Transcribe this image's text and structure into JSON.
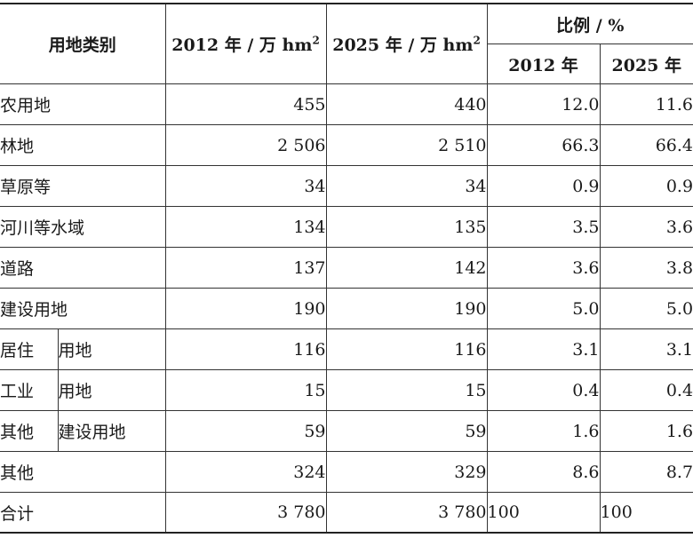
{
  "header": {
    "category": "用地类别",
    "col_2012": "2012 年 / 万 hm",
    "col_2025": "2025 年 / 万 hm",
    "unit_exp": "2",
    "ratio": "比例 / %",
    "ratio_2012": "2012 年",
    "ratio_2025": "2025 年"
  },
  "rows": [
    {
      "name": "农用地",
      "v2012": "455",
      "v2025": "440",
      "p2012": "12.0",
      "p2025": "11.6"
    },
    {
      "name": "林地",
      "v2012": "2 506",
      "v2025": "2 510",
      "p2012": "66.3",
      "p2025": "66.4"
    },
    {
      "name": "草原等",
      "v2012": "34",
      "v2025": "34",
      "p2012": "0.9",
      "p2025": "0.9"
    },
    {
      "name": "河川等水域",
      "v2012": "134",
      "v2025": "135",
      "p2012": "3.5",
      "p2025": "3.6"
    },
    {
      "name": "道路",
      "v2012": "137",
      "v2025": "142",
      "p2012": "3.6",
      "p2025": "3.8"
    },
    {
      "name": "建设用地",
      "v2012": "190",
      "v2025": "190",
      "p2012": "5.0",
      "p2025": "5.0"
    }
  ],
  "subrows": [
    {
      "a": "居住",
      "b": "用地",
      "v2012": "116",
      "v2025": "116",
      "p2012": "3.1",
      "p2025": "3.1"
    },
    {
      "a": "工业",
      "b": "用地",
      "v2012": "15",
      "v2025": "15",
      "p2012": "0.4",
      "p2025": "0.4"
    },
    {
      "a": "其他",
      "b": "建设用地",
      "v2012": "59",
      "v2025": "59",
      "p2012": "1.6",
      "p2025": "1.6"
    }
  ],
  "other": {
    "name": "其他",
    "v2012": "324",
    "v2025": "329",
    "p2012": "8.6",
    "p2025": "8.7"
  },
  "total": {
    "name": "合计",
    "v2012": "3 780",
    "v2025": "3 780",
    "p2012": "100",
    "p2025": "100"
  }
}
